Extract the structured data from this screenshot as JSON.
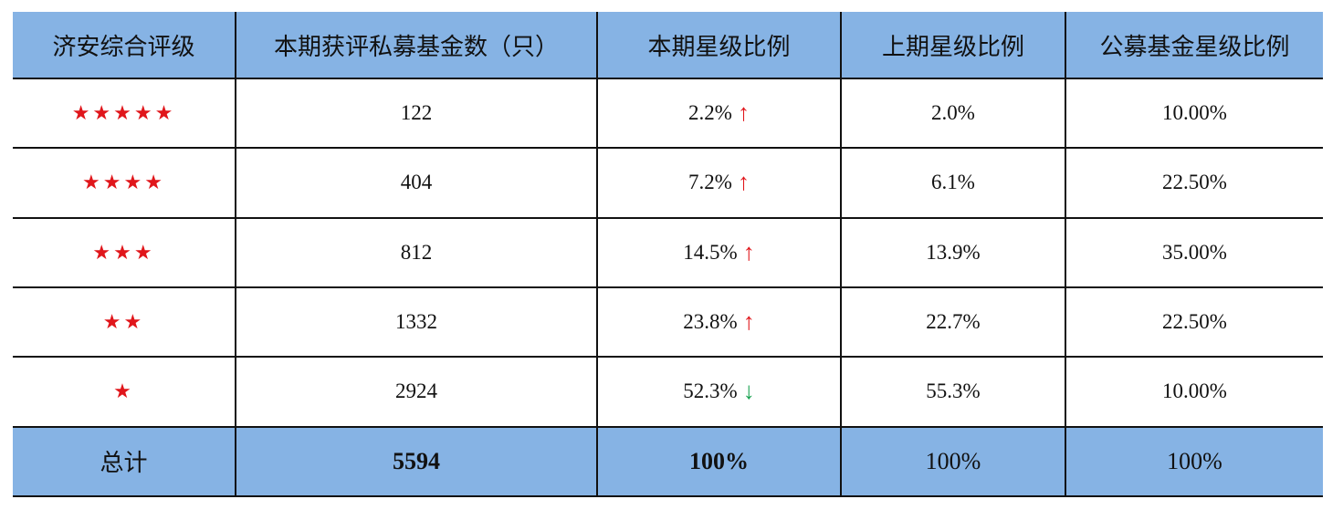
{
  "table": {
    "header": [
      "济安综合评级",
      "本期获评私募基金数（只）",
      "本期星级比例",
      "上期星级比例",
      "公募基金星级比例"
    ],
    "rows": [
      {
        "rating": "★★★★★",
        "count": "122",
        "current": "2.2%",
        "trend": "↑",
        "previous": "2.0%",
        "public": "10.00%"
      },
      {
        "rating": "★★★★",
        "count": "404",
        "current": "7.2%",
        "trend": "↑",
        "previous": "6.1%",
        "public": "22.50%"
      },
      {
        "rating": "★★★",
        "count": "812",
        "current": "14.5%",
        "trend": "↑",
        "previous": "13.9%",
        "public": "35.00%"
      },
      {
        "rating": "★★",
        "count": "1332",
        "current": "23.8%",
        "trend": "↑",
        "previous": "22.7%",
        "public": "22.50%"
      },
      {
        "rating": "★",
        "count": "2924",
        "current": "52.3%",
        "trend": "↓",
        "previous": "55.3%",
        "public": "10.00%"
      }
    ],
    "total": {
      "label": "总计",
      "count": "5594",
      "current": "100%",
      "previous": "100%",
      "public": "100%"
    }
  }
}
